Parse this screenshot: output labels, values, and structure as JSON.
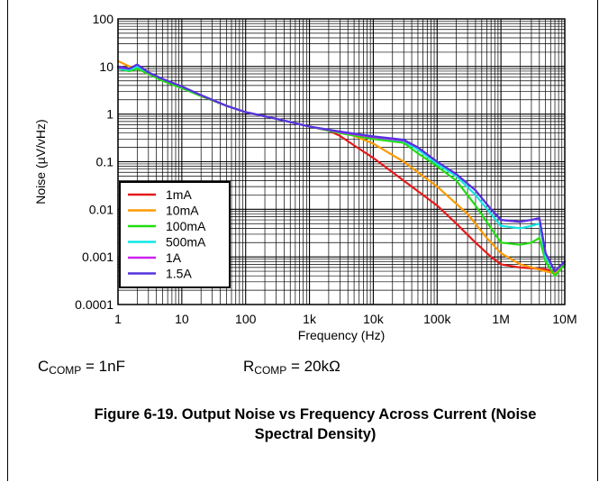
{
  "chart_data": {
    "type": "line",
    "title": "",
    "xlabel": "Frequency (Hz)",
    "ylabel": "Noise (µV/vHz)",
    "x_scale": "log",
    "y_scale": "log",
    "xlim": [
      1,
      10000000
    ],
    "ylim": [
      0.0001,
      100
    ],
    "grid": true,
    "legend_position": "bottom-left",
    "x_tick_labels": [
      "1",
      "10",
      "100",
      "1k",
      "10k",
      "100k",
      "1M",
      "10M"
    ],
    "y_tick_labels": [
      "0.0001",
      "0.001",
      "0.01",
      "0.1",
      "1",
      "10",
      "100"
    ],
    "series": [
      {
        "name": "1mA",
        "color": "#e41a1c",
        "x": [
          1,
          1.5,
          2,
          3,
          5,
          10,
          20,
          50,
          100,
          300,
          1000,
          2000,
          3000,
          5000,
          10000,
          30000,
          100000,
          200000,
          400000,
          700000,
          1000000,
          2000000,
          5000000,
          7000000,
          10000000
        ],
        "y": [
          10,
          9,
          10,
          7,
          5.5,
          3.8,
          2.4,
          1.5,
          1.1,
          0.8,
          0.55,
          0.45,
          0.35,
          0.22,
          0.12,
          0.04,
          0.012,
          0.005,
          0.002,
          0.001,
          0.0007,
          0.0006,
          0.00055,
          0.0005,
          0.0007
        ]
      },
      {
        "name": "10mA",
        "color": "#ff9a00",
        "x": [
          1,
          1.5,
          2,
          3,
          5,
          10,
          20,
          50,
          100,
          300,
          1000,
          3000,
          5000,
          10000,
          30000,
          100000,
          300000,
          600000,
          1000000,
          2000000,
          5000000,
          7000000,
          10000000
        ],
        "y": [
          13,
          10,
          9,
          7,
          5.5,
          3.8,
          2.4,
          1.5,
          1.1,
          0.8,
          0.55,
          0.42,
          0.35,
          0.24,
          0.1,
          0.03,
          0.008,
          0.0025,
          0.0012,
          0.0007,
          0.0005,
          0.00045,
          0.0007
        ]
      },
      {
        "name": "100mA",
        "color": "#22dd11",
        "x": [
          1,
          1.5,
          2,
          3,
          5,
          10,
          20,
          50,
          100,
          300,
          1000,
          3000,
          10000,
          30000,
          50000,
          100000,
          200000,
          400000,
          700000,
          1000000,
          2000000,
          3000000,
          4000000,
          5000000,
          7000000,
          10000000
        ],
        "y": [
          9,
          8,
          9,
          7,
          5,
          3.5,
          2.4,
          1.5,
          1.1,
          0.8,
          0.55,
          0.4,
          0.3,
          0.25,
          0.15,
          0.08,
          0.04,
          0.012,
          0.004,
          0.002,
          0.0018,
          0.002,
          0.0025,
          0.0008,
          0.0004,
          0.0007
        ]
      },
      {
        "name": "500mA",
        "color": "#11e6e6",
        "x": [
          1,
          1.5,
          2,
          3,
          5,
          10,
          20,
          50,
          100,
          300,
          1000,
          3000,
          10000,
          30000,
          50000,
          100000,
          200000,
          400000,
          700000,
          1000000,
          2000000,
          3000000,
          4000000,
          5000000,
          7000000,
          10000000
        ],
        "y": [
          9,
          8.5,
          10,
          7.5,
          5.5,
          3.8,
          2.5,
          1.5,
          1.1,
          0.8,
          0.55,
          0.42,
          0.33,
          0.27,
          0.18,
          0.09,
          0.05,
          0.02,
          0.008,
          0.0045,
          0.004,
          0.0045,
          0.005,
          0.001,
          0.0005,
          0.0008
        ]
      },
      {
        "name": "1A",
        "color": "#cc22ee",
        "x": [
          1,
          1.5,
          2,
          3,
          5,
          10,
          20,
          50,
          100,
          300,
          1000,
          3000,
          10000,
          30000,
          50000,
          100000,
          200000,
          400000,
          700000,
          1000000,
          2000000,
          3000000,
          4000000,
          5000000,
          7000000,
          10000000
        ],
        "y": [
          9.5,
          9,
          11,
          7.5,
          5.5,
          3.8,
          2.5,
          1.5,
          1.1,
          0.8,
          0.55,
          0.42,
          0.33,
          0.28,
          0.2,
          0.1,
          0.055,
          0.025,
          0.01,
          0.006,
          0.0055,
          0.006,
          0.0065,
          0.0012,
          0.0005,
          0.0008
        ]
      },
      {
        "name": "1.5A",
        "color": "#5533dd",
        "x": [
          1,
          1.5,
          2,
          3,
          5,
          10,
          20,
          50,
          100,
          300,
          1000,
          3000,
          10000,
          30000,
          50000,
          100000,
          200000,
          400000,
          700000,
          1000000,
          2000000,
          3000000,
          4000000,
          5000000,
          7000000,
          10000000
        ],
        "y": [
          10,
          9,
          11,
          7.5,
          5.5,
          3.8,
          2.5,
          1.5,
          1.1,
          0.8,
          0.55,
          0.43,
          0.34,
          0.29,
          0.2,
          0.1,
          0.055,
          0.025,
          0.01,
          0.006,
          0.0055,
          0.006,
          0.0065,
          0.0012,
          0.0005,
          0.0008
        ]
      }
    ]
  },
  "conditions": {
    "ccomp_main": "C",
    "ccomp_sub": "COMP",
    "ccomp_value": " = 1nF",
    "rcomp_main": "R",
    "rcomp_sub": "COMP",
    "rcomp_value": " = 20kΩ"
  },
  "caption": "Figure 6-19. Output Noise vs Frequency Across Current (Noise Spectral Density)"
}
